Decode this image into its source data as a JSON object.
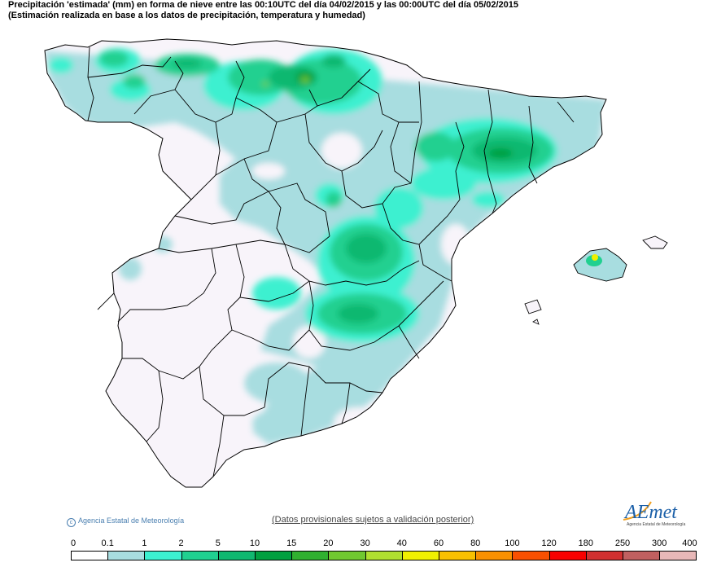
{
  "header": {
    "title": "Precipitación 'estimada' (mm) en forma de nieve entre las 00:10UTC del día 04/02/2015 y las 00:00UTC del día 05/02/2015",
    "subtitle": "(Estimación realizada en base a los datos de precipitación, temperatura y humedad)"
  },
  "footer": {
    "copyright": "Agencia Estatal de Meteorología",
    "disclaimer": "(Datos provisionales sujetos a validación posterior)",
    "logo_text": "AEmet",
    "logo_subtext": "Agencia Estatal de Meteorología"
  },
  "legend": {
    "ticks": [
      "0",
      "0.1",
      "1",
      "2",
      "5",
      "10",
      "15",
      "20",
      "30",
      "40",
      "60",
      "80",
      "100",
      "120",
      "180",
      "250",
      "300",
      "400"
    ],
    "colors": [
      "#ffffff",
      "#a8dde0",
      "#3cf0d0",
      "#20d090",
      "#10b870",
      "#00a040",
      "#30b030",
      "#70c830",
      "#b0e030",
      "#f0f000",
      "#f8c000",
      "#f89000",
      "#f85000",
      "#f80000",
      "#d03030",
      "#c06060",
      "#e8b8b8"
    ]
  },
  "map": {
    "background": "#ffffff",
    "land_color": "#f8f4fa",
    "border_color": "#000000"
  }
}
